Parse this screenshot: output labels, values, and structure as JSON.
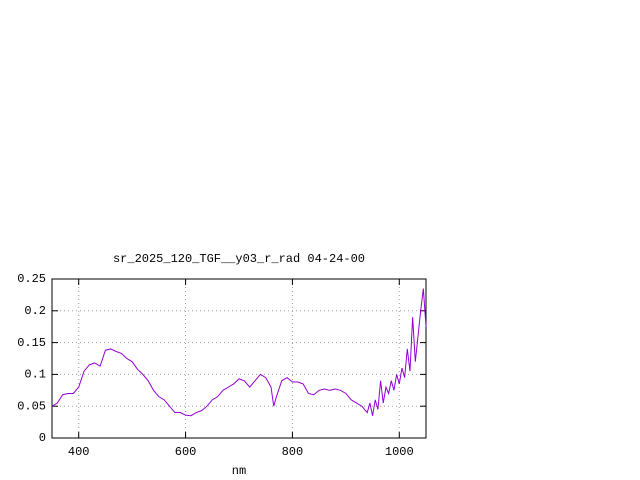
{
  "chart_data": {
    "type": "line",
    "title": "sr_2025_120_TGF__y03_r_rad 04-24-00",
    "xlabel": "nm",
    "x": [
      350,
      360,
      370,
      380,
      390,
      400,
      410,
      420,
      430,
      440,
      450,
      460,
      470,
      480,
      490,
      500,
      510,
      520,
      530,
      540,
      550,
      560,
      570,
      580,
      590,
      600,
      610,
      620,
      630,
      640,
      650,
      660,
      670,
      680,
      690,
      700,
      710,
      720,
      730,
      740,
      750,
      760,
      765,
      770,
      780,
      790,
      800,
      810,
      820,
      830,
      840,
      850,
      860,
      870,
      880,
      890,
      900,
      910,
      920,
      930,
      940,
      945,
      950,
      955,
      960,
      965,
      970,
      975,
      980,
      985,
      990,
      995,
      1000,
      1005,
      1010,
      1015,
      1020,
      1025,
      1030,
      1035,
      1040,
      1045,
      1050
    ],
    "values": [
      0.05,
      0.055,
      0.068,
      0.07,
      0.07,
      0.08,
      0.105,
      0.115,
      0.118,
      0.113,
      0.138,
      0.14,
      0.136,
      0.133,
      0.125,
      0.12,
      0.108,
      0.1,
      0.09,
      0.075,
      0.065,
      0.06,
      0.05,
      0.04,
      0.04,
      0.036,
      0.035,
      0.04,
      0.043,
      0.05,
      0.06,
      0.065,
      0.075,
      0.08,
      0.085,
      0.093,
      0.09,
      0.08,
      0.09,
      0.1,
      0.095,
      0.08,
      0.05,
      0.065,
      0.09,
      0.095,
      0.088,
      0.088,
      0.085,
      0.07,
      0.068,
      0.075,
      0.077,
      0.075,
      0.077,
      0.075,
      0.07,
      0.06,
      0.055,
      0.05,
      0.04,
      0.055,
      0.035,
      0.06,
      0.045,
      0.09,
      0.055,
      0.08,
      0.07,
      0.09,
      0.075,
      0.1,
      0.085,
      0.11,
      0.095,
      0.14,
      0.105,
      0.19,
      0.12,
      0.16,
      0.2,
      0.235,
      0.175
    ],
    "color": "#9400d3",
    "xlim": [
      350,
      1050
    ],
    "ylim": [
      0,
      0.25
    ],
    "xticks": [
      400,
      600,
      800,
      1000
    ],
    "yticks": [
      0,
      0.05,
      0.1,
      0.15,
      0.2,
      0.25
    ],
    "grid": true
  }
}
